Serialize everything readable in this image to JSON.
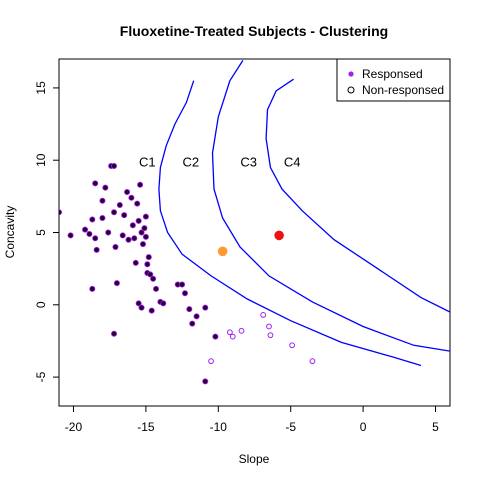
{
  "chart_data": {
    "type": "scatter",
    "title": "Fluoxetine-Treated Subjects - Clustering",
    "xlabel": "Slope",
    "ylabel": "Concavity",
    "xlim": [
      -21,
      6
    ],
    "ylim": [
      -7,
      17
    ],
    "xticks": [
      -20,
      -15,
      -10,
      -5,
      0,
      5
    ],
    "yticks": [
      -5,
      0,
      5,
      10,
      15
    ],
    "grid": false,
    "legend_position": "top-right",
    "legend": [
      {
        "label": "Responsed",
        "marker": "filled-circle",
        "color": "#a020f0"
      },
      {
        "label": "Non-responsed",
        "marker": "open-circle",
        "color": "#000000"
      }
    ],
    "colors": {
      "responder_points": "#2a0033",
      "responder_outline": "#a020f0",
      "nonresponder_points": "#a020f0",
      "boundaries": "#0000ff",
      "centroid_orange": "#ff9933",
      "centroid_red": "#ee1111"
    },
    "series": [
      {
        "name": "Responsed",
        "style": "filled",
        "points": [
          [
            -21.0,
            6.4
          ],
          [
            -20.2,
            4.8
          ],
          [
            -19.2,
            5.2
          ],
          [
            -18.9,
            4.9
          ],
          [
            -18.7,
            5.9
          ],
          [
            -18.7,
            1.1
          ],
          [
            -18.5,
            4.6
          ],
          [
            -18.4,
            3.8
          ],
          [
            -18.5,
            8.4
          ],
          [
            -18.0,
            7.2
          ],
          [
            -18.0,
            6.0
          ],
          [
            -17.8,
            8.1
          ],
          [
            -17.6,
            5.0
          ],
          [
            -17.4,
            9.6
          ],
          [
            -17.2,
            9.6
          ],
          [
            -17.2,
            6.4
          ],
          [
            -17.1,
            4.0
          ],
          [
            -16.8,
            6.9
          ],
          [
            -16.6,
            4.8
          ],
          [
            -16.5,
            6.2
          ],
          [
            -16.3,
            7.8
          ],
          [
            -16.2,
            4.5
          ],
          [
            -16.0,
            7.4
          ],
          [
            -15.9,
            5.5
          ],
          [
            -15.8,
            4.6
          ],
          [
            -15.7,
            2.9
          ],
          [
            -15.6,
            7.0
          ],
          [
            -15.5,
            5.8
          ],
          [
            -15.4,
            8.3
          ],
          [
            -15.3,
            5.0
          ],
          [
            -15.2,
            4.2
          ],
          [
            -15.1,
            5.3
          ],
          [
            -15.0,
            6.1
          ],
          [
            -15.0,
            4.7
          ],
          [
            -14.9,
            2.8
          ],
          [
            -14.8,
            3.3
          ],
          [
            -14.9,
            2.2
          ],
          [
            -14.7,
            2.1
          ],
          [
            -14.5,
            1.8
          ],
          [
            -14.3,
            1.1
          ],
          [
            -14.0,
            0.2
          ],
          [
            -13.8,
            0.1
          ],
          [
            -15.5,
            0.1
          ],
          [
            -15.3,
            -0.2
          ],
          [
            -14.6,
            -0.4
          ],
          [
            -12.8,
            1.4
          ],
          [
            -12.5,
            1.4
          ],
          [
            -12.3,
            0.8
          ],
          [
            -12.0,
            -0.3
          ],
          [
            -11.8,
            -1.3
          ],
          [
            -11.5,
            -0.8
          ],
          [
            -10.9,
            -0.2
          ],
          [
            -10.2,
            -2.2
          ],
          [
            -17.2,
            -2.0
          ],
          [
            -17.0,
            1.5
          ],
          [
            -10.9,
            -5.3
          ]
        ]
      },
      {
        "name": "Non-responsed",
        "style": "open",
        "points": [
          [
            -10.5,
            -3.9
          ],
          [
            -9.2,
            -1.9
          ],
          [
            -9.0,
            -2.2
          ],
          [
            -8.4,
            -1.8
          ],
          [
            -6.9,
            -0.7
          ],
          [
            -6.5,
            -1.5
          ],
          [
            -6.4,
            -2.1
          ],
          [
            -4.9,
            -2.8
          ],
          [
            -3.5,
            -3.9
          ]
        ]
      }
    ],
    "centroids": [
      {
        "x": -9.7,
        "y": 3.7,
        "color": "#ff9933"
      },
      {
        "x": -5.8,
        "y": 4.8,
        "color": "#ee1111"
      }
    ],
    "boundaries": [
      {
        "label": "C1",
        "label_pos": [
          -14.9,
          9.9
        ],
        "points": [
          [
            -11.7,
            15.5
          ],
          [
            -12.2,
            14.0
          ],
          [
            -13.0,
            12.5
          ],
          [
            -13.6,
            11.0
          ],
          [
            -14.0,
            9.5
          ],
          [
            -14.1,
            8.0
          ],
          [
            -14.0,
            6.5
          ],
          [
            -13.5,
            5.0
          ],
          [
            -12.5,
            3.5
          ],
          [
            -10.5,
            2.0
          ],
          [
            -8.0,
            0.4
          ],
          [
            -5.0,
            -1.1
          ],
          [
            -1.5,
            -2.6
          ],
          [
            2.0,
            -3.6
          ],
          [
            4.0,
            -4.2
          ]
        ]
      },
      {
        "label": "C2",
        "label_pos": [
          -11.9,
          9.9
        ],
        "points": [
          [
            -8.3,
            16.9
          ],
          [
            -9.2,
            15.5
          ],
          [
            -10.0,
            13.0
          ],
          [
            -10.4,
            10.5
          ],
          [
            -10.3,
            8.0
          ],
          [
            -9.7,
            6.0
          ],
          [
            -8.5,
            4.0
          ],
          [
            -6.5,
            2.0
          ],
          [
            -3.5,
            0.2
          ],
          [
            0.0,
            -1.5
          ],
          [
            3.5,
            -2.8
          ],
          [
            6.0,
            -3.2
          ]
        ]
      },
      {
        "label": "C3",
        "label_pos": [
          -7.9,
          9.9
        ],
        "points": [
          [
            -4.8,
            15.6
          ],
          [
            -6.0,
            14.8
          ],
          [
            -6.6,
            13.5
          ],
          [
            -6.7,
            11.5
          ],
          [
            -6.4,
            9.5
          ],
          [
            -5.6,
            8.0
          ],
          [
            -4.2,
            6.5
          ],
          [
            -2.0,
            4.5
          ],
          [
            1.0,
            2.5
          ],
          [
            4.0,
            0.5
          ],
          [
            6.0,
            -0.5
          ]
        ]
      },
      {
        "label": "C4",
        "label_pos": [
          -4.9,
          9.9
        ],
        "points": []
      }
    ]
  }
}
